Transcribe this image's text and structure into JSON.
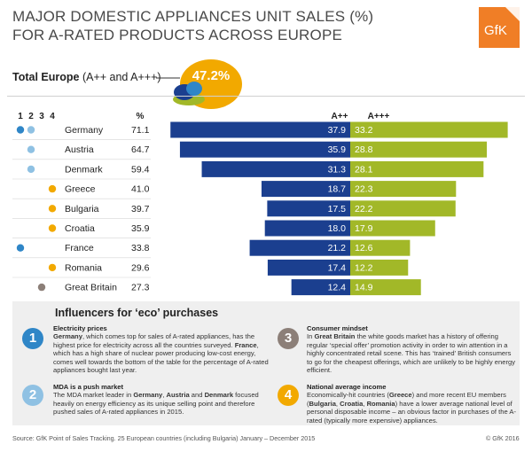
{
  "title_lines": [
    "MAJOR DOMESTIC APPLIANCES UNIT SALES (%)",
    "FOR A-RATED PRODUCTS ACROSS EUROPE"
  ],
  "logo_text": "GfK",
  "total": {
    "label_bold": "Total Europe",
    "label_rest": " (A++ and A+++)",
    "value": "47.2%"
  },
  "colors": {
    "app": "#1b3f8f",
    "appp": "#a2b828",
    "dot_blue": "#2f86c7",
    "dot_lightblue": "#8fc1e3",
    "dot_orange": "#f2a900",
    "dot_grey": "#8c7f78",
    "bubble": "#f2a900",
    "logo": "#f07e26"
  },
  "chart_data": {
    "type": "bar",
    "orientation": "diverging-horizontal",
    "cluster_labels": [
      "1",
      "2",
      "3",
      "4"
    ],
    "percent_header": "%",
    "categories": [
      "Germany",
      "Austria",
      "Denmark",
      "Greece",
      "Bulgaria",
      "Croatia",
      "France",
      "Romania",
      "Great Britain"
    ],
    "totals": [
      "71.1",
      "64.7",
      "59.4",
      "41.0",
      "39.7",
      "35.9",
      "33.8",
      "29.6",
      "27.3"
    ],
    "clusters": [
      [
        1,
        2
      ],
      [
        2
      ],
      [
        2
      ],
      [
        4
      ],
      [
        4
      ],
      [
        4
      ],
      [
        1
      ],
      [
        4
      ],
      [
        3
      ]
    ],
    "series": [
      {
        "name": "A++",
        "values": [
          37.9,
          35.9,
          31.3,
          18.7,
          17.5,
          18.0,
          21.2,
          17.4,
          12.4
        ]
      },
      {
        "name": "A+++",
        "values": [
          33.2,
          28.8,
          28.1,
          22.3,
          22.2,
          17.9,
          12.6,
          12.2,
          14.9
        ]
      }
    ]
  },
  "influencers": {
    "title": "Influencers for ‘eco’ purchases",
    "items": [
      {
        "num": "1",
        "heading": "Electricity prices",
        "body": "<b>Germany</b>, which comes top for sales of A-rated appliances, has the highest price for electricity across all the countries surveyed. <b>France</b>, which has a high share of nuclear power producing low-cost energy, comes well towards the bottom of the table for the percentage of A-rated appliances bought last year."
      },
      {
        "num": "2",
        "heading": "MDA is a push market",
        "body": "The MDA market leader in <b>Germany</b>, <b>Austria</b> and <b>Denmark</b> focused heavily on energy efficiency as its unique selling point and therefore pushed sales of A-rated appliances in 2015."
      },
      {
        "num": "3",
        "heading": "Consumer mindset",
        "body": "In <b>Great Britain</b> the white goods market has a history of offering regular ‘special offer’ promotion activity in order to win attention in a highly concentrated retail scene. This has ‘trained’ British consumers to go for the cheapest offerings, which are unlikely to be highly energy efficient."
      },
      {
        "num": "4",
        "heading": "National average income",
        "body": "Economically-hit countries (<b>Greece</b>) and more recent EU members (<b>Bulgaria</b>, <b>Croatia</b>, <b>Romania</b>) have a lower average national level of personal disposable income – an obvious factor in purchases of the A-rated (typically more expensive) appliances."
      }
    ]
  },
  "source": "Source: GfK Point of Sales Tracking. 25 European countries (including Bulgaria) January – December 2015",
  "copyright": "© GfK 2016"
}
